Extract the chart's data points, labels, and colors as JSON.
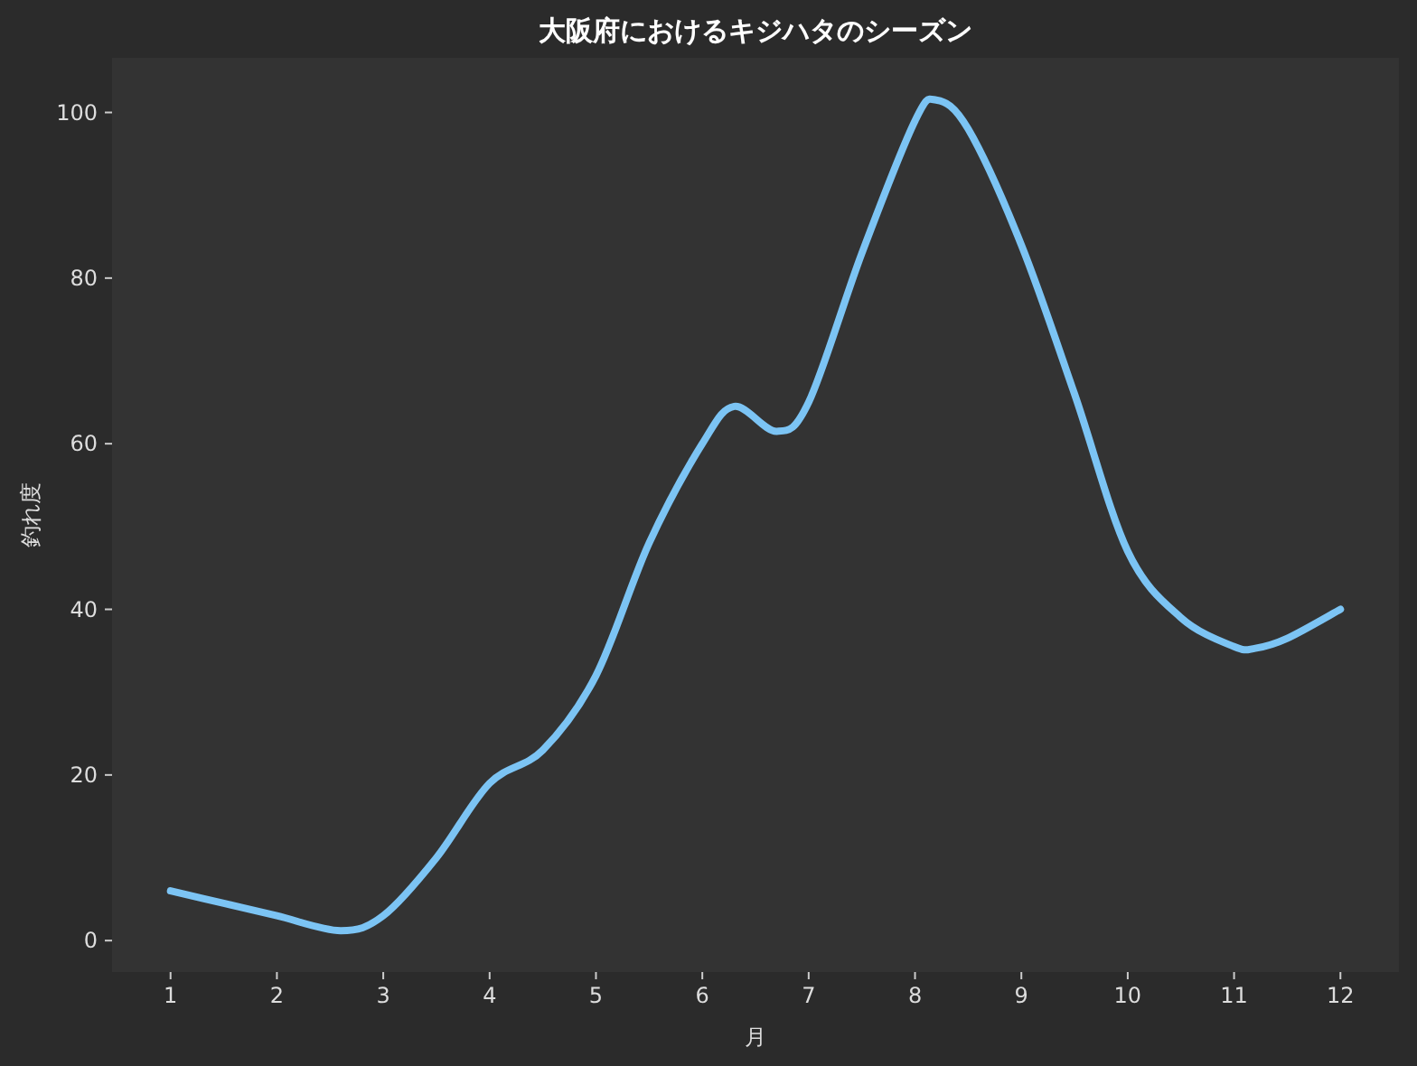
{
  "chart_data": {
    "type": "line",
    "title": "大阪府におけるキジハタのシーズン",
    "xlabel": "月",
    "ylabel": "釣れ度",
    "xlim": [
      0.45,
      12.55
    ],
    "ylim": [
      -3.8,
      106.6
    ],
    "xticks": [
      1,
      2,
      3,
      4,
      5,
      6,
      7,
      8,
      9,
      10,
      11,
      12
    ],
    "yticks": [
      0,
      20,
      40,
      60,
      80,
      100
    ],
    "grid": false,
    "series": [
      {
        "color": "#7cc4f4",
        "x": [
          1,
          1.5,
          2,
          2.6,
          3,
          3.5,
          4,
          4.5,
          5,
          5.5,
          6,
          6.3,
          6.7,
          7,
          7.5,
          8,
          8.2,
          8.5,
          9,
          9.5,
          10,
          10.5,
          11,
          11.2,
          11.5,
          12
        ],
        "values": [
          6,
          4.5,
          3,
          1.2,
          3,
          10,
          19,
          23,
          32,
          48,
          60,
          64.5,
          61.5,
          65,
          83,
          99,
          101.5,
          98,
          84,
          66,
          47,
          39,
          35.5,
          35.3,
          36.5,
          40
        ]
      }
    ]
  }
}
